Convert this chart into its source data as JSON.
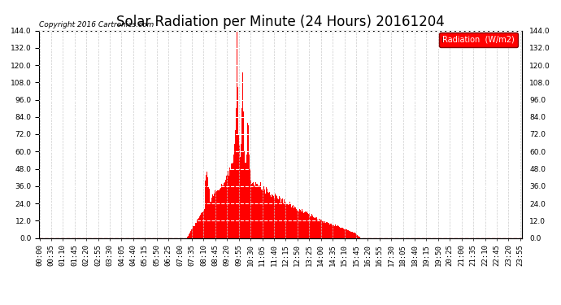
{
  "title": "Solar Radiation per Minute (24 Hours) 20161204",
  "copyright_text": "Copyright 2016 Cartronics.com",
  "legend_label": "Radiation  (W/m2)",
  "ylim": [
    0.0,
    144.0
  ],
  "yticks": [
    0.0,
    12.0,
    24.0,
    36.0,
    48.0,
    60.0,
    72.0,
    84.0,
    96.0,
    108.0,
    120.0,
    132.0,
    144.0
  ],
  "bar_color": "#FF0000",
  "bg_color": "#FFFFFF",
  "title_fontsize": 12,
  "tick_fontsize": 6.5,
  "n_minutes": 1440,
  "tick_step": 35
}
